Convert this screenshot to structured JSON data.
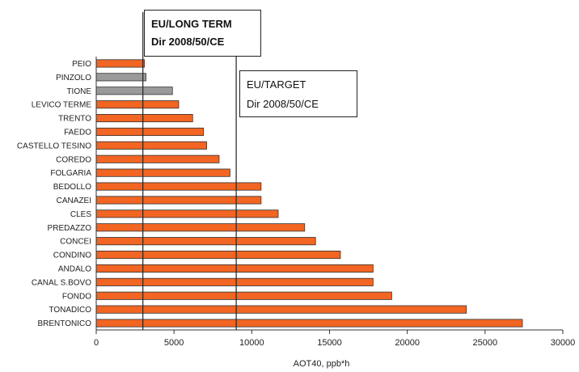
{
  "chart_data": {
    "type": "bar",
    "orientation": "horizontal",
    "categories": [
      "PEIO",
      "PINZOLO",
      "TIONE",
      "LEVICO TERME",
      "TRENTO",
      "FAEDO",
      "CASTELLO TESINO",
      "COREDO",
      "FOLGARIA",
      "BEDOLLO",
      "CANAZEI",
      "CLES",
      "PREDAZZO",
      "CONCEI",
      "CONDINO",
      "ANDALO",
      "CANAL S.BOVO",
      "FONDO",
      "TONADICO",
      "BRENTONICO"
    ],
    "values": [
      3100,
      3200,
      4900,
      5300,
      6200,
      6900,
      7100,
      7900,
      8600,
      10600,
      10600,
      11700,
      13400,
      14100,
      15700,
      17800,
      17800,
      19000,
      23800,
      27400
    ],
    "bar_colors": [
      "#f26522",
      "#9a9a9a",
      "#9a9a9a",
      "#f26522",
      "#f26522",
      "#f26522",
      "#f26522",
      "#f26522",
      "#f26522",
      "#f26522",
      "#f26522",
      "#f26522",
      "#f26522",
      "#f26522",
      "#f26522",
      "#f26522",
      "#f26522",
      "#f26522",
      "#f26522",
      "#f26522"
    ],
    "xlabel": "AOT40, ppb*h",
    "xlim": [
      0,
      30000
    ],
    "xticks": [
      0,
      5000,
      10000,
      15000,
      20000,
      25000,
      30000
    ],
    "xtick_labels": [
      "0",
      "5000",
      "10000",
      "15000",
      "20000",
      "25000",
      "30000"
    ],
    "reference_lines": [
      {
        "value": 3000,
        "label_lines": [
          "EU/LONG TERM",
          "Dir 2008/50/CE"
        ]
      },
      {
        "value": 9000,
        "label_lines": [
          "EU/TARGET",
          "Dir 2008/50/CE"
        ]
      }
    ],
    "colors": {
      "main": "#f26522",
      "secondary": "#9a9a9a",
      "outline": "#333333"
    }
  }
}
